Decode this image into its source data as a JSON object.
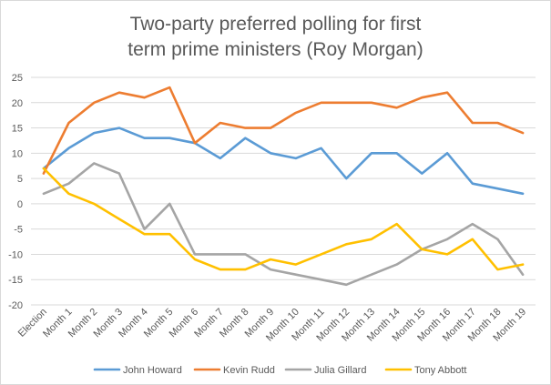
{
  "chart_data": {
    "type": "line",
    "title_lines": [
      "Two-party preferred polling for first",
      "term prime ministers (Roy Morgan)"
    ],
    "xlabel": "",
    "ylabel": "",
    "categories": [
      "Election",
      "Month 1",
      "Month 2",
      "Month 3",
      "Month 4",
      "Month 5",
      "Month 6",
      "Month 7",
      "Month 8",
      "Month 9",
      "Month 10",
      "Month 11",
      "Month 12",
      "Month 13",
      "Month 14",
      "Month 15",
      "Month 16",
      "Month 17",
      "Month 18",
      "Month 19"
    ],
    "ylim": [
      -20,
      25
    ],
    "yticks": [
      25,
      20,
      15,
      10,
      5,
      0,
      -5,
      -10,
      -15,
      -20
    ],
    "grid": true,
    "legend_position": "bottom",
    "series": [
      {
        "name": "John Howard",
        "color": "#5b9bd5",
        "values": [
          7,
          11,
          14,
          15,
          13,
          13,
          12,
          9,
          13,
          10,
          9,
          11,
          5,
          10,
          10,
          6,
          10,
          4,
          3,
          2
        ]
      },
      {
        "name": "Kevin Rudd",
        "color": "#ed7d31",
        "values": [
          6,
          16,
          20,
          22,
          21,
          23,
          12,
          16,
          15,
          15,
          18,
          20,
          20,
          20,
          19,
          21,
          22,
          16,
          16,
          14
        ]
      },
      {
        "name": "Julia Gillard",
        "color": "#a5a5a5",
        "values": [
          2,
          4,
          8,
          6,
          -5,
          0,
          -10,
          -10,
          -10,
          -13,
          -14,
          -15,
          -16,
          -14,
          -12,
          -9,
          -7,
          -4,
          -7,
          -14
        ]
      },
      {
        "name": "Tony Abbott",
        "color": "#ffc000",
        "values": [
          7,
          2,
          0,
          -3,
          -6,
          -6,
          -11,
          -13,
          -13,
          -11,
          -12,
          -10,
          -8,
          -7,
          -4,
          -9,
          -10,
          -7,
          -13,
          -12
        ]
      }
    ]
  }
}
